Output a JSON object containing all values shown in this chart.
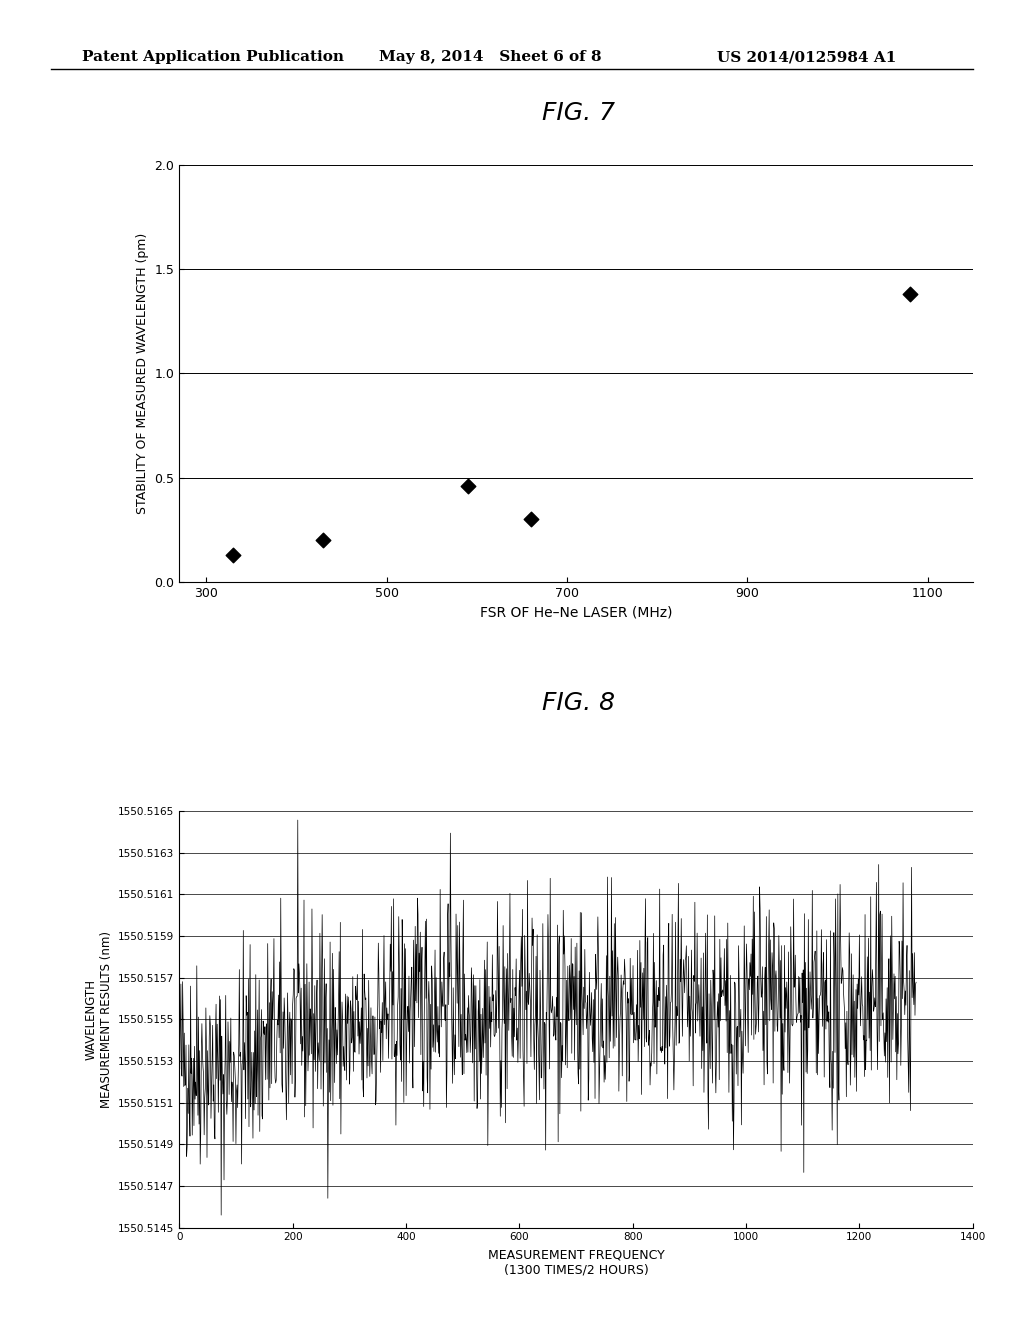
{
  "header_left": "Patent Application Publication",
  "header_mid": "May 8, 2014   Sheet 6 of 8",
  "header_right": "US 2014/0125984 A1",
  "fig7_title": "FIG. 7",
  "fig7_xlabel": "FSR OF He–Ne LASER (MHz)",
  "fig7_ylabel": "STABILITY OF MEASURED WAVELENGTH (pm)",
  "fig7_x": [
    330,
    430,
    590,
    660,
    1080
  ],
  "fig7_y": [
    0.13,
    0.2,
    0.46,
    0.3,
    1.38
  ],
  "fig7_xlim": [
    270,
    1150
  ],
  "fig7_ylim": [
    0,
    2.0
  ],
  "fig7_xticks": [
    300,
    500,
    700,
    900,
    1100
  ],
  "fig7_yticks": [
    0,
    0.5,
    1.0,
    1.5,
    2.0
  ],
  "fig8_title": "FIG. 8",
  "fig8_xlabel_line1": "MEASUREMENT FREQUENCY",
  "fig8_xlabel_line2": "(1300 TIMES/2 HOURS)",
  "fig8_ylabel_line1": "WAVELENGTH",
  "fig8_ylabel_line2": "MEASUREMENT RESULTS (nm)",
  "fig8_xlim": [
    0,
    1400
  ],
  "fig8_ylim": [
    1550.5145,
    1550.5165
  ],
  "fig8_xticks": [
    0,
    200,
    400,
    600,
    800,
    1000,
    1200,
    1400
  ],
  "fig8_yticks": [
    1550.5145,
    1550.5147,
    1550.5149,
    1550.5151,
    1550.5153,
    1550.5155,
    1550.5157,
    1550.5159,
    1550.5161,
    1550.5163,
    1550.5165
  ],
  "fig8_mean": 1550.5155,
  "fig8_noise_std": 0.00025,
  "fig8_n_points": 1300,
  "background_color": "#ffffff",
  "text_color": "#000000",
  "marker_color": "#000000",
  "line_color": "#000000"
}
